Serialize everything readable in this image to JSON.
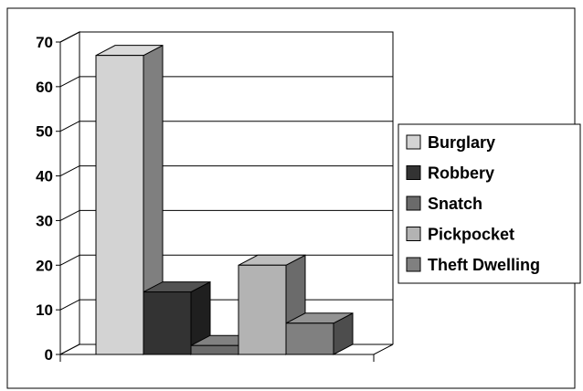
{
  "chart_data": {
    "type": "bar",
    "style": "3d-column",
    "title": "",
    "xlabel": "",
    "ylabel": "",
    "ylim": [
      0,
      70
    ],
    "yticks": [
      0,
      10,
      20,
      30,
      40,
      50,
      60,
      70
    ],
    "grid": true,
    "legend_position": "right",
    "series": [
      {
        "name": "Burglary",
        "value": 67,
        "color": "#d3d3d3"
      },
      {
        "name": "Robbery",
        "value": 14,
        "color": "#333333"
      },
      {
        "name": "Snatch",
        "value": 2,
        "color": "#6b6b6b"
      },
      {
        "name": "Pickpocket",
        "value": 20,
        "color": "#b3b3b3"
      },
      {
        "name": "Theft Dwelling",
        "value": 7,
        "color": "#808080"
      }
    ]
  }
}
